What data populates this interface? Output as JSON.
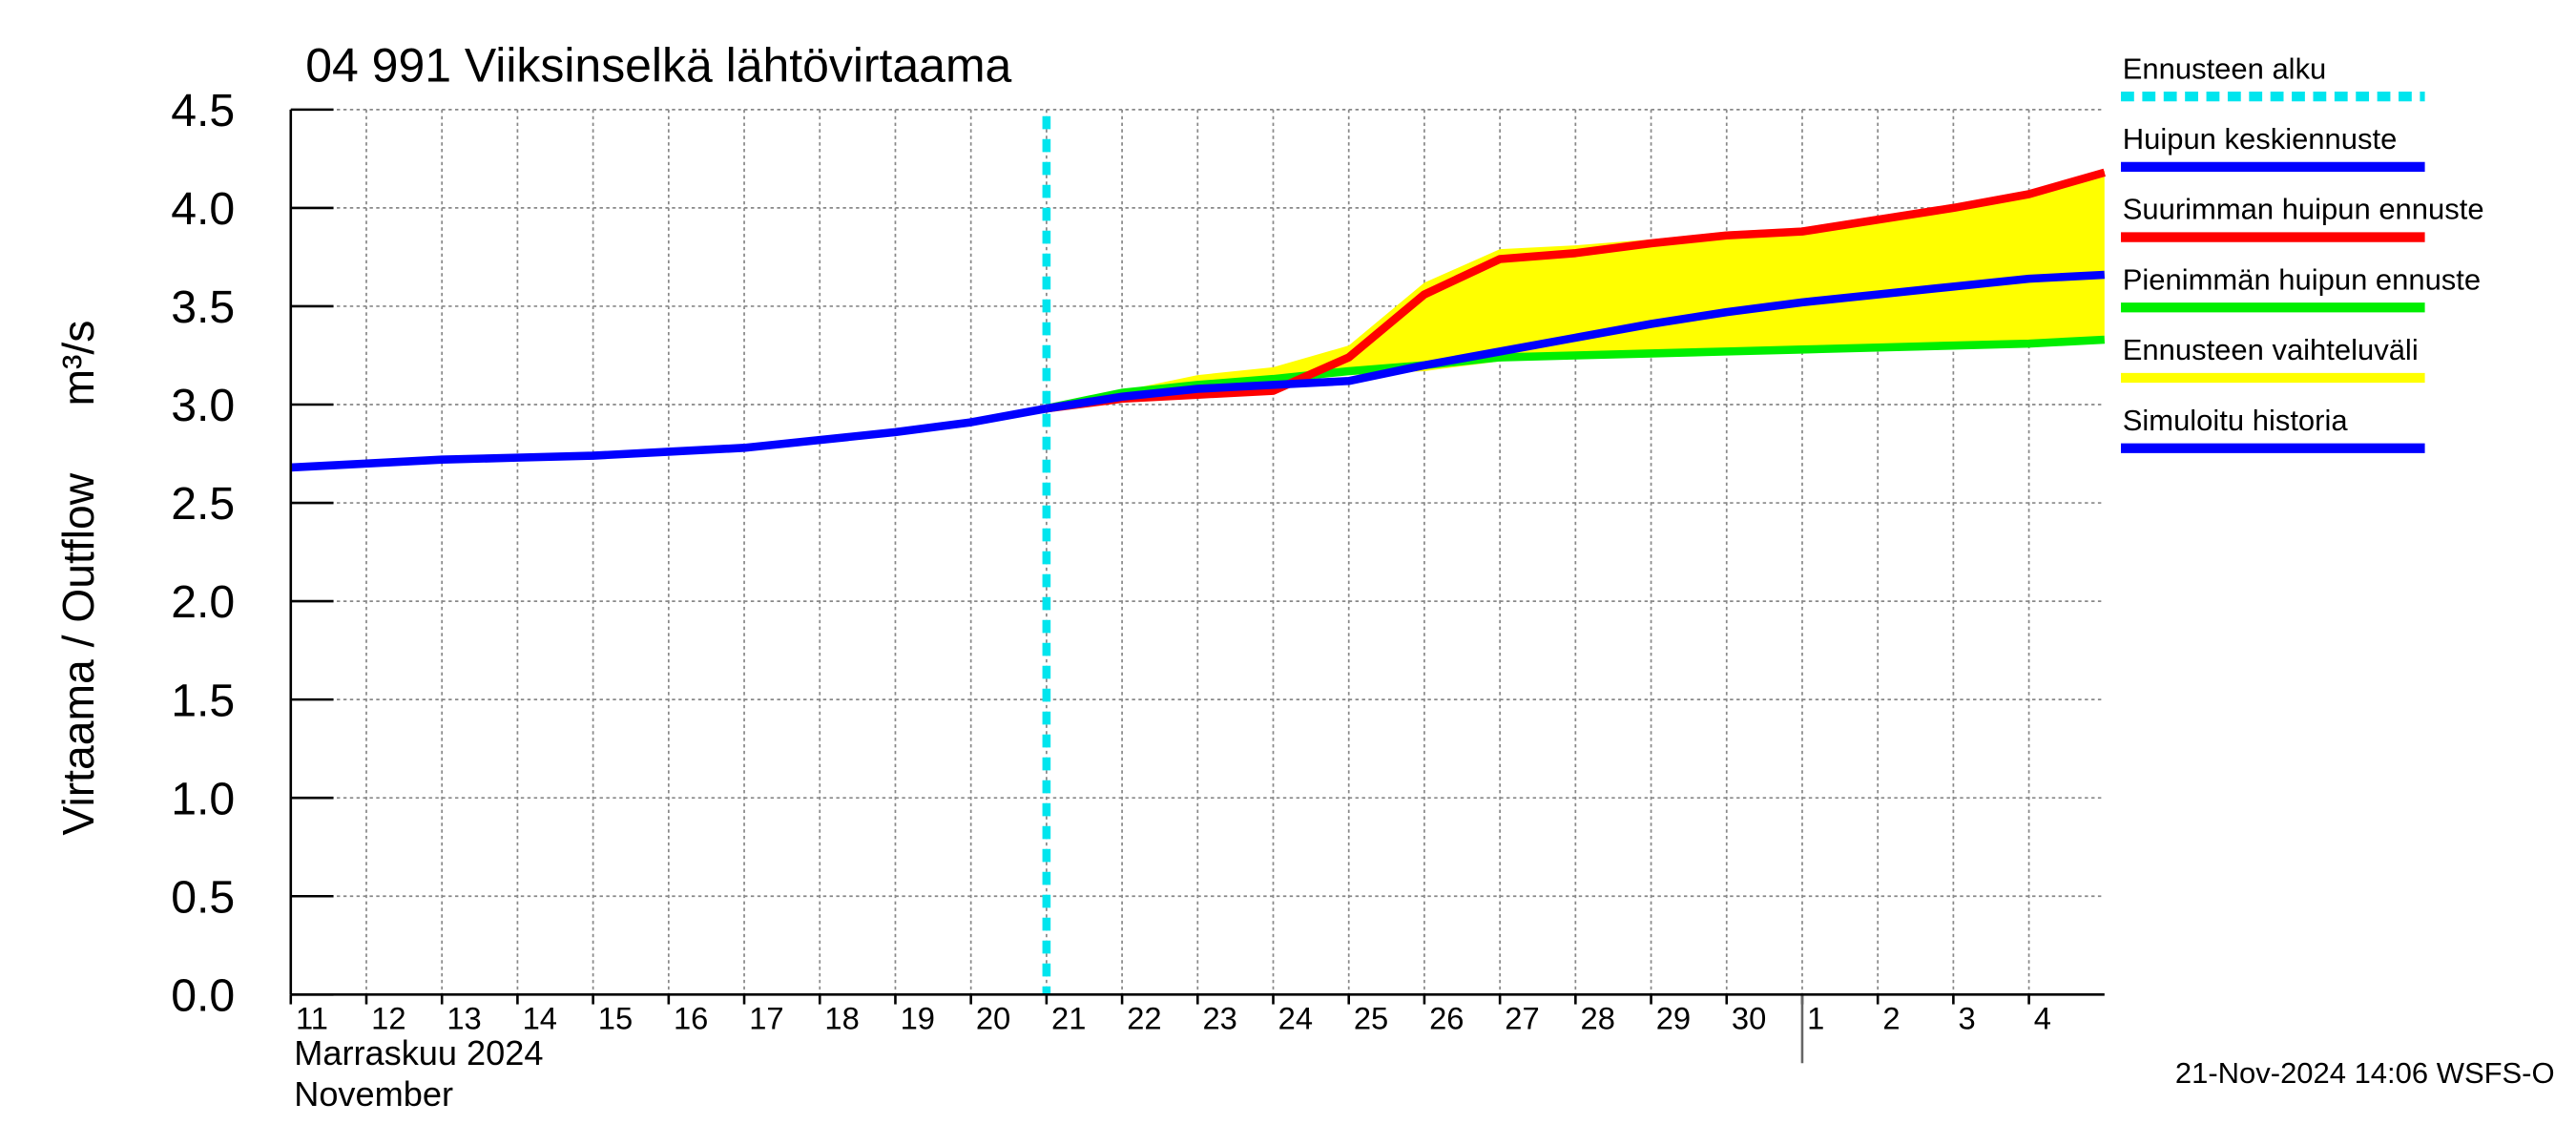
{
  "chart_data": {
    "type": "line",
    "title": "04 991 Viiksinselkä lähtövirtaama",
    "ylabel": "Virtaama / Outflow",
    "yunit": "m³/s",
    "month_label": "Marraskuu 2024",
    "month_label_en": "November",
    "footer": "21-Nov-2024 14:06 WSFS-O",
    "x": [
      "2024-11-11",
      "2024-11-12",
      "2024-11-13",
      "2024-11-14",
      "2024-11-15",
      "2024-11-16",
      "2024-11-17",
      "2024-11-18",
      "2024-11-19",
      "2024-11-20",
      "2024-11-21",
      "2024-11-22",
      "2024-11-23",
      "2024-11-24",
      "2024-11-25",
      "2024-11-26",
      "2024-11-27",
      "2024-11-28",
      "2024-11-29",
      "2024-11-30",
      "2024-12-01",
      "2024-12-02",
      "2024-12-03",
      "2024-12-04",
      "2024-12-05"
    ],
    "xlim": [
      "2024-11-11",
      "2024-12-05"
    ],
    "xticks": [
      {
        "value": "2024-11-11",
        "label": "11"
      },
      {
        "value": "2024-11-12",
        "label": "12"
      },
      {
        "value": "2024-11-13",
        "label": "13"
      },
      {
        "value": "2024-11-14",
        "label": "14"
      },
      {
        "value": "2024-11-15",
        "label": "15"
      },
      {
        "value": "2024-11-16",
        "label": "16"
      },
      {
        "value": "2024-11-17",
        "label": "17"
      },
      {
        "value": "2024-11-18",
        "label": "18"
      },
      {
        "value": "2024-11-19",
        "label": "19"
      },
      {
        "value": "2024-11-20",
        "label": "20"
      },
      {
        "value": "2024-11-21",
        "label": "21"
      },
      {
        "value": "2024-11-22",
        "label": "22"
      },
      {
        "value": "2024-11-23",
        "label": "23"
      },
      {
        "value": "2024-11-24",
        "label": "24"
      },
      {
        "value": "2024-11-25",
        "label": "25"
      },
      {
        "value": "2024-11-26",
        "label": "26"
      },
      {
        "value": "2024-11-27",
        "label": "27"
      },
      {
        "value": "2024-11-28",
        "label": "28"
      },
      {
        "value": "2024-11-29",
        "label": "29"
      },
      {
        "value": "2024-11-30",
        "label": "30"
      },
      {
        "value": "2024-12-01",
        "label": "1"
      },
      {
        "value": "2024-12-02",
        "label": "2"
      },
      {
        "value": "2024-12-03",
        "label": "3"
      },
      {
        "value": "2024-12-04",
        "label": "4"
      }
    ],
    "month_break": "2024-12-01",
    "ylim": [
      0,
      4.5
    ],
    "yticks": [
      {
        "value": 0,
        "label": "0.0"
      },
      0.5,
      {
        "value": 1,
        "label": "1.0"
      },
      1.5,
      {
        "value": 2,
        "label": "2.0"
      },
      2.5,
      {
        "value": 3,
        "label": "3.0"
      },
      3.5,
      {
        "value": 4,
        "label": "4.0"
      },
      4.5
    ],
    "grid": true,
    "forecast_start": "2024-11-21",
    "legend_position": "right",
    "legend": [
      {
        "name": "Ennusteen alku",
        "color": "#00e5ee",
        "dashed": true
      },
      {
        "name": "Huipun keskiennuste",
        "color": "#0000ff"
      },
      {
        "name": "Suurimman huipun ennuste",
        "color": "#ff0000"
      },
      {
        "name": "Pienimmän huipun ennuste",
        "color": "#00ee00"
      },
      {
        "name": "Ennusteen vaihteluväli",
        "color": "#ffff00"
      },
      {
        "name": "Simuloitu historia",
        "color": "#0000ff"
      }
    ],
    "band": {
      "color": "#ffff00",
      "lower": [
        null,
        null,
        null,
        null,
        null,
        null,
        null,
        null,
        null,
        null,
        2.98,
        3.05,
        3.09,
        3.12,
        3.15,
        3.17,
        3.22,
        3.24,
        3.25,
        3.26,
        3.27,
        3.28,
        3.29,
        3.3,
        3.32
      ],
      "upper": [
        null,
        null,
        null,
        null,
        null,
        null,
        null,
        null,
        null,
        null,
        2.98,
        3.07,
        3.15,
        3.19,
        3.3,
        3.62,
        3.79,
        3.81,
        3.84,
        3.88,
        3.9,
        3.96,
        4.02,
        4.09,
        4.19
      ]
    },
    "series": [
      {
        "name": "Pienimmän huipun ennuste",
        "color": "#00ee00",
        "values": [
          null,
          null,
          null,
          null,
          null,
          null,
          null,
          null,
          null,
          null,
          2.98,
          3.06,
          3.1,
          3.13,
          3.17,
          3.2,
          3.24,
          3.25,
          3.26,
          3.27,
          3.28,
          3.29,
          3.3,
          3.31,
          3.33
        ]
      },
      {
        "name": "Suurimman huipun ennuste",
        "color": "#ff0000",
        "values": [
          null,
          null,
          null,
          null,
          null,
          null,
          null,
          null,
          null,
          null,
          2.98,
          3.03,
          3.05,
          3.07,
          3.24,
          3.56,
          3.74,
          3.77,
          3.82,
          3.86,
          3.88,
          3.94,
          4.0,
          4.07,
          4.18
        ]
      },
      {
        "name": "Huipun keskiennuste",
        "color": "#0000ff",
        "values": [
          null,
          null,
          null,
          null,
          null,
          null,
          null,
          null,
          null,
          null,
          2.98,
          3.04,
          3.08,
          3.1,
          3.12,
          3.2,
          3.27,
          3.34,
          3.41,
          3.47,
          3.52,
          3.56,
          3.6,
          3.64,
          3.66
        ]
      },
      {
        "name": "Simuloitu historia",
        "color": "#0000ff",
        "values": [
          2.68,
          2.7,
          2.72,
          2.73,
          2.74,
          2.76,
          2.78,
          2.82,
          2.86,
          2.91,
          2.98,
          null,
          null,
          null,
          null,
          null,
          null,
          null,
          null,
          null,
          null,
          null,
          null,
          null,
          null
        ]
      }
    ]
  }
}
